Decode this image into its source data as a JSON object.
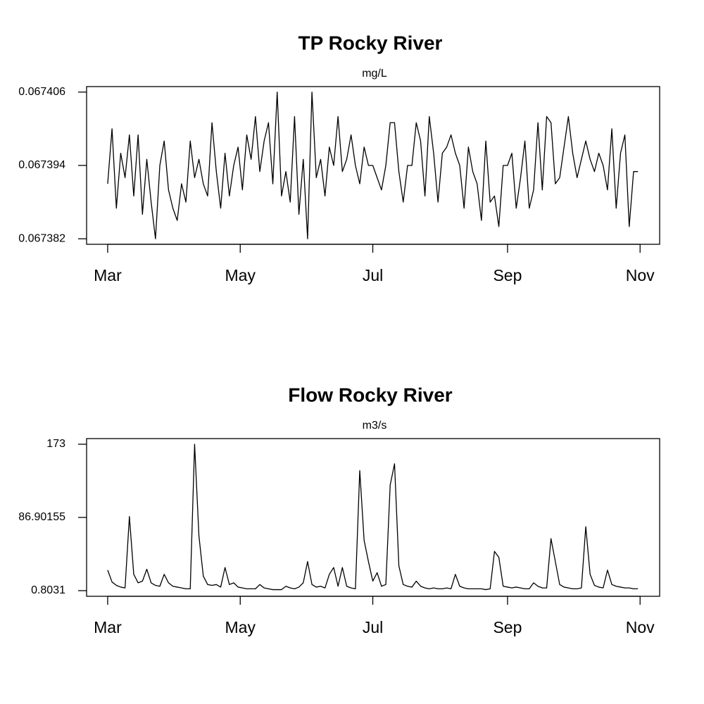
{
  "chart_data": [
    {
      "type": "line",
      "title": "TP Rocky River",
      "subtitle": "mg/L",
      "color": "#000000",
      "x": [
        0,
        2,
        4,
        6,
        8,
        10,
        12,
        14,
        16,
        18,
        20,
        22,
        24,
        26,
        28,
        30,
        32,
        34,
        36,
        38,
        40,
        42,
        44,
        46,
        48,
        50,
        52,
        54,
        56,
        58,
        60,
        62,
        64,
        66,
        68,
        70,
        72,
        74,
        76,
        78,
        80,
        82,
        84,
        86,
        88,
        90,
        92,
        94,
        96,
        98,
        100,
        102,
        104,
        106,
        108,
        110,
        112,
        114,
        116,
        118,
        120,
        122,
        124,
        126,
        128,
        130,
        132,
        134,
        136,
        138,
        140,
        142,
        144,
        146,
        148,
        150,
        152,
        154,
        156,
        158,
        160,
        162,
        164,
        166,
        168,
        170,
        172,
        174,
        176,
        178,
        180,
        182,
        184,
        186,
        188,
        190,
        192,
        194,
        196,
        198,
        200,
        202,
        204,
        206,
        208,
        210,
        212,
        214,
        216,
        218,
        220,
        222,
        224,
        226,
        228,
        230,
        232,
        234,
        236,
        238,
        240,
        242,
        244
      ],
      "values": [
        0.067391,
        0.0674,
        0.067387,
        0.067396,
        0.067392,
        0.067399,
        0.067389,
        0.067399,
        0.067386,
        0.067395,
        0.067388,
        0.067382,
        0.067394,
        0.067398,
        0.06739,
        0.067387,
        0.067385,
        0.067391,
        0.067388,
        0.067398,
        0.067392,
        0.067395,
        0.067391,
        0.067389,
        0.067401,
        0.067393,
        0.067387,
        0.067396,
        0.067389,
        0.067394,
        0.067397,
        0.06739,
        0.067399,
        0.067395,
        0.067402,
        0.067393,
        0.067398,
        0.067401,
        0.067391,
        0.067406,
        0.067389,
        0.067393,
        0.067388,
        0.067402,
        0.067386,
        0.067395,
        0.067382,
        0.067406,
        0.067392,
        0.067395,
        0.067389,
        0.067397,
        0.067394,
        0.067402,
        0.067393,
        0.067395,
        0.067399,
        0.067394,
        0.067391,
        0.067397,
        0.067394,
        0.067394,
        0.067392,
        0.06739,
        0.067394,
        0.067401,
        0.067401,
        0.067393,
        0.067388,
        0.067394,
        0.067394,
        0.067401,
        0.067398,
        0.067389,
        0.067402,
        0.067396,
        0.067388,
        0.067396,
        0.067397,
        0.067399,
        0.067396,
        0.067394,
        0.067387,
        0.067397,
        0.067393,
        0.067391,
        0.067385,
        0.067398,
        0.067388,
        0.067389,
        0.067384,
        0.067394,
        0.067394,
        0.067396,
        0.067387,
        0.067392,
        0.067398,
        0.067387,
        0.06739,
        0.067401,
        0.06739,
        0.067402,
        0.067401,
        0.067391,
        0.067392,
        0.067397,
        0.067402,
        0.067396,
        0.067392,
        0.067395,
        0.067398,
        0.067395,
        0.067393,
        0.067396,
        0.067394,
        0.06739,
        0.0674,
        0.067387,
        0.067396,
        0.067399,
        0.067384,
        0.067393,
        0.067393
      ],
      "xlim": [
        -9.7,
        254
      ],
      "ylim": [
        0.0673811,
        0.0674069
      ],
      "xticks": [
        {
          "value": 0,
          "label": "Mar"
        },
        {
          "value": 61,
          "label": "May"
        },
        {
          "value": 122,
          "label": "Jul"
        },
        {
          "value": 184,
          "label": "Sep"
        },
        {
          "value": 245,
          "label": "Nov"
        }
      ],
      "yticks": [
        0.067382,
        0.067394,
        0.067406
      ]
    },
    {
      "type": "line",
      "title": "Flow Rocky River",
      "subtitle": "m3/s",
      "color": "#000000",
      "x": [
        0,
        2,
        4,
        6,
        8,
        10,
        12,
        14,
        16,
        18,
        20,
        22,
        24,
        26,
        28,
        30,
        32,
        34,
        36,
        38,
        40,
        42,
        44,
        46,
        48,
        50,
        52,
        54,
        56,
        58,
        60,
        62,
        64,
        66,
        68,
        70,
        72,
        74,
        76,
        78,
        80,
        82,
        84,
        86,
        88,
        90,
        92,
        94,
        96,
        98,
        100,
        102,
        104,
        106,
        108,
        110,
        112,
        114,
        116,
        118,
        120,
        122,
        124,
        126,
        128,
        130,
        132,
        134,
        136,
        138,
        140,
        142,
        144,
        146,
        148,
        150,
        152,
        154,
        156,
        158,
        160,
        162,
        164,
        166,
        168,
        170,
        172,
        174,
        176,
        178,
        180,
        182,
        184,
        186,
        188,
        190,
        192,
        194,
        196,
        198,
        200,
        202,
        204,
        206,
        208,
        210,
        212,
        214,
        216,
        218,
        220,
        222,
        224,
        226,
        228,
        230,
        232,
        234,
        236,
        238,
        240,
        242,
        244
      ],
      "values": [
        25,
        11,
        7,
        5,
        4,
        88,
        20,
        10,
        12,
        26,
        10,
        7,
        6,
        20,
        10,
        6,
        5,
        4,
        3,
        3,
        173,
        65,
        18,
        8,
        7,
        8,
        5,
        28,
        8,
        10,
        5,
        4,
        3,
        3,
        3,
        8,
        4,
        3,
        2,
        2,
        2,
        6,
        4,
        3,
        5,
        10,
        35,
        8,
        5,
        6,
        4,
        20,
        28,
        6,
        28,
        6,
        4,
        3,
        142,
        60,
        35,
        12,
        22,
        6,
        8,
        125,
        150,
        30,
        8,
        6,
        5,
        12,
        6,
        4,
        3,
        4,
        3,
        3,
        4,
        3,
        20,
        6,
        4,
        3,
        3,
        3,
        3,
        2,
        3,
        47,
        40,
        6,
        5,
        4,
        5,
        4,
        3,
        3,
        10,
        6,
        4,
        4,
        62,
        35,
        8,
        5,
        4,
        3,
        3,
        4,
        76,
        20,
        7,
        5,
        4,
        25,
        8,
        6,
        5,
        4,
        4,
        3,
        3
      ],
      "xlim": [
        -9.7,
        254
      ],
      "ylim": [
        -5.82,
        179.62
      ],
      "xticks": [
        {
          "value": 0,
          "label": "Mar"
        },
        {
          "value": 61,
          "label": "May"
        },
        {
          "value": 122,
          "label": "Jul"
        },
        {
          "value": 184,
          "label": "Sep"
        },
        {
          "value": 245,
          "label": "Nov"
        }
      ],
      "yticks": [
        0.8031,
        86.90155,
        173
      ]
    }
  ]
}
